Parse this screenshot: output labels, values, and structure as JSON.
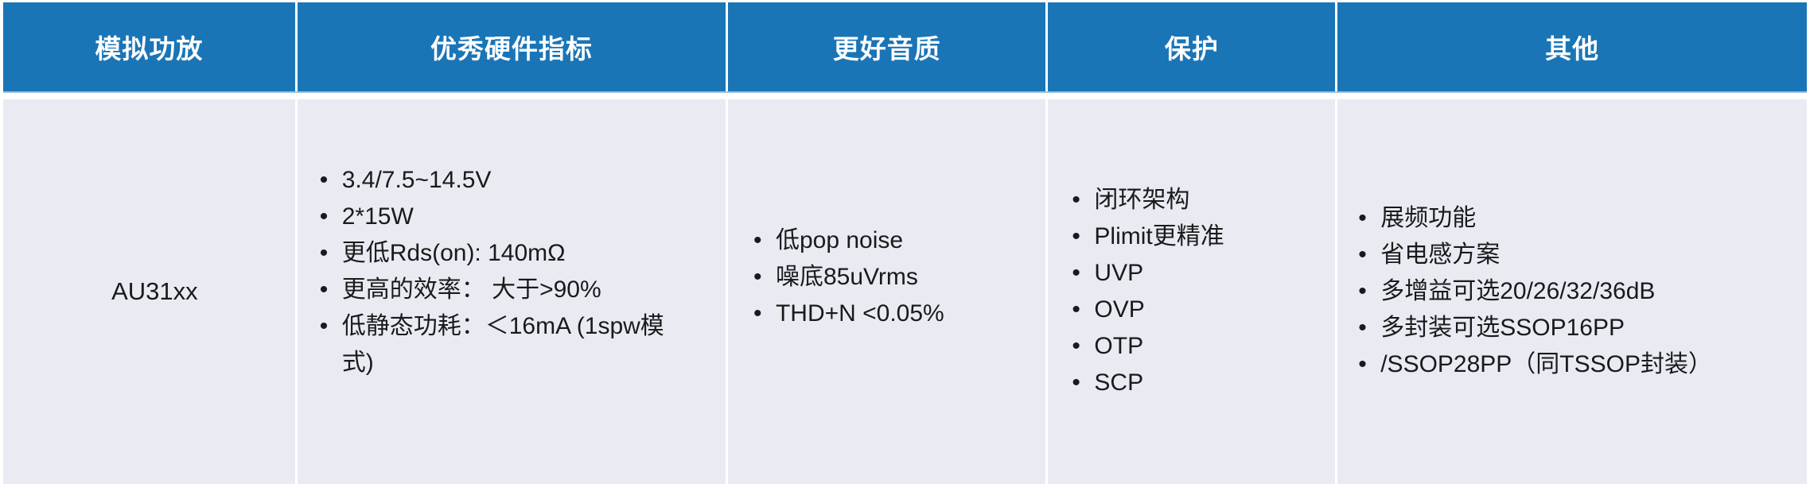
{
  "table": {
    "headers": [
      "模拟功放",
      "优秀硬件指标",
      "更好音质",
      "保护",
      "其他"
    ],
    "row": {
      "product": "AU31xx",
      "hardware_specs": [
        "3.4/7.5~14.5V",
        "2*15W",
        "更低Rds(on): 140mΩ",
        "更高的效率： 大于>90%",
        "低静态功耗：＜16mA (1spw模式)"
      ],
      "audio_quality": [
        "低pop noise",
        "噪底85uVrms",
        "THD+N <0.05%"
      ],
      "protection": [
        "闭环架构",
        "Plimit更精准",
        "UVP",
        "OVP",
        "OTP",
        "SCP"
      ],
      "others": [
        "展频功能",
        "省电感方案",
        "多增益可选20/26/32/36dB",
        "多封装可选SSOP16PP",
        "/SSOP28PP（同TSSOP封装）"
      ]
    },
    "colors": {
      "header_bg": "#1A75B7",
      "header_text": "#FFFFFF",
      "header_rule": "#9CC2E5",
      "body_bg": "#E9EBF3",
      "body_text": "#1A1A1A"
    }
  }
}
